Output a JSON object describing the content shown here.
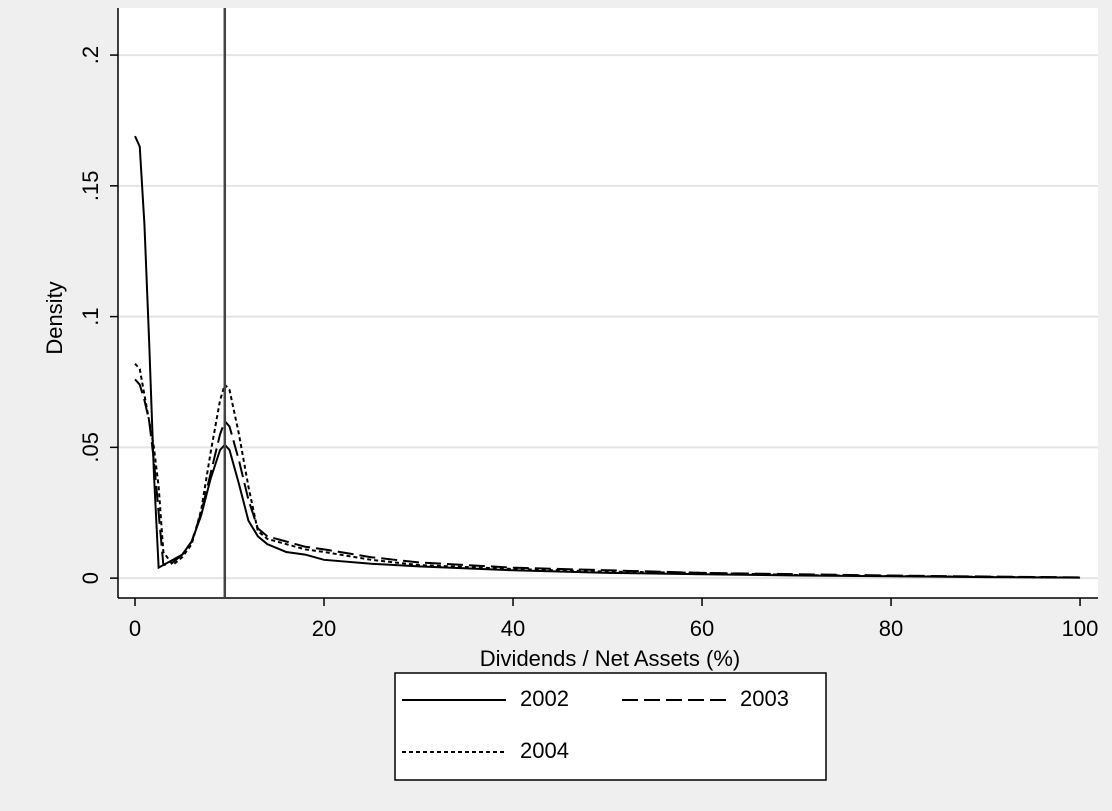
{
  "chart_data": {
    "type": "line",
    "x_label": "Dividends / Net Assets (%)",
    "y_label": "Density",
    "x": [
      0,
      0.5,
      1,
      1.5,
      2,
      2.5,
      3,
      4,
      5,
      6,
      7,
      8,
      9,
      9.5,
      10,
      11,
      12,
      13,
      14,
      16,
      18,
      20,
      25,
      30,
      40,
      50,
      60,
      70,
      80,
      90,
      100
    ],
    "series": [
      {
        "name": "2002",
        "color": "#000000",
        "dash": "none",
        "values": [
          0.169,
          0.165,
          0.135,
          0.09,
          0.04,
          0.004,
          0.005,
          0.007,
          0.009,
          0.014,
          0.024,
          0.038,
          0.049,
          0.051,
          0.049,
          0.036,
          0.022,
          0.016,
          0.013,
          0.01,
          0.009,
          0.007,
          0.0055,
          0.0045,
          0.003,
          0.002,
          0.0015,
          0.001,
          0.0007,
          0.0004,
          0.0002
        ]
      },
      {
        "name": "2003",
        "color": "#000000",
        "dash": "16 6",
        "values": [
          0.076,
          0.074,
          0.068,
          0.06,
          0.045,
          0.025,
          0.005,
          0.006,
          0.009,
          0.014,
          0.025,
          0.04,
          0.055,
          0.06,
          0.058,
          0.045,
          0.03,
          0.019,
          0.016,
          0.014,
          0.012,
          0.011,
          0.008,
          0.006,
          0.004,
          0.003,
          0.002,
          0.0015,
          0.001,
          0.0006,
          0.0003
        ]
      },
      {
        "name": "2004",
        "color": "#000000",
        "dash": "4 3",
        "values": [
          0.082,
          0.08,
          0.07,
          0.06,
          0.05,
          0.035,
          0.01,
          0.005,
          0.008,
          0.013,
          0.026,
          0.048,
          0.068,
          0.074,
          0.072,
          0.055,
          0.035,
          0.018,
          0.015,
          0.013,
          0.011,
          0.01,
          0.007,
          0.005,
          0.0035,
          0.0025,
          0.002,
          0.0012,
          0.0008,
          0.0005,
          0.0002
        ]
      }
    ],
    "vline": 9.5,
    "vline_color": "#444444",
    "xlim": [
      -1.8,
      101.9
    ],
    "ylim": [
      -0.0076,
      0.218
    ],
    "xticks": [
      0,
      20,
      40,
      60,
      80,
      100
    ],
    "yticks": [
      0,
      {
        "value": 0.05,
        "label": ".05"
      },
      {
        "value": 0.1,
        "label": ".1"
      },
      {
        "value": 0.15,
        "label": ".15"
      },
      {
        "value": 0.2,
        "label": ".2"
      }
    ],
    "grid": true,
    "legend": "bottom"
  }
}
